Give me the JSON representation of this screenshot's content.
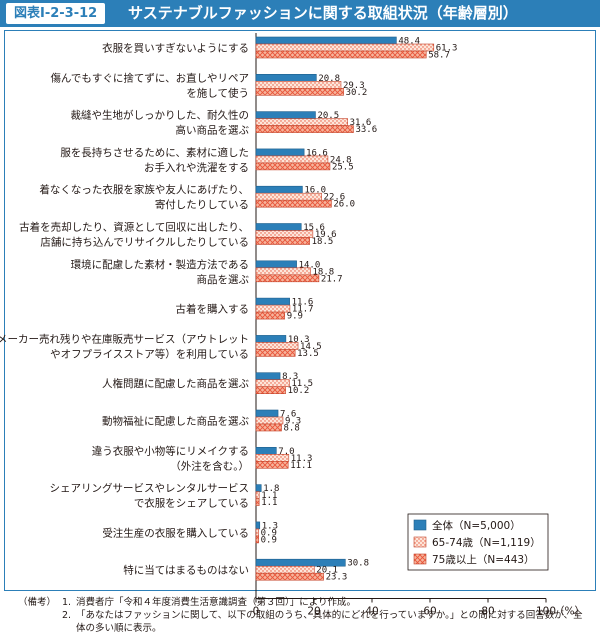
{
  "header": {
    "badge": "図表Ⅰ-2-3-12",
    "title": "サステナブルファッションに関する取組状況（年齢層別）"
  },
  "chart_data": {
    "type": "bar",
    "orientation": "horizontal",
    "categories": [
      [
        "衣服を買いすぎないようにする"
      ],
      [
        "傷んでもすぐに捨てずに、お直しやリペア",
        "を施して使う"
      ],
      [
        "裁縫や生地がしっかりした、耐久性の",
        "高い商品を選ぶ"
      ],
      [
        "服を長持ちさせるために、素材に適した",
        "お手入れや洗濯をする"
      ],
      [
        "着なくなった衣服を家族や友人にあげたり、",
        "寄付したりしている"
      ],
      [
        "古着を売却したり、資源として回収に出したり、",
        "店舗に持ち込んでリサイクルしたりしている"
      ],
      [
        "環境に配慮した素材・製造方法である",
        "商品を選ぶ"
      ],
      [
        "古着を購入する"
      ],
      [
        "メーカー売れ残りや在庫販売サービス（アウトレット",
        "やオフプライスストア等）を利用している"
      ],
      [
        "人権問題に配慮した商品を選ぶ"
      ],
      [
        "動物福祉に配慮した商品を選ぶ"
      ],
      [
        "違う衣服や小物等にリメイクする",
        "（外注を含む。）"
      ],
      [
        "シェアリングサービスやレンタルサービス",
        "で衣服をシェアしている"
      ],
      [
        "受注生産の衣服を購入している"
      ],
      [
        "特に当てはまるものはない"
      ]
    ],
    "series": [
      {
        "name": "全体（N=5,000）",
        "color": "#2c7fb8",
        "pattern": "solid",
        "values": [
          48.4,
          20.8,
          20.5,
          16.6,
          16.0,
          15.6,
          14.0,
          11.6,
          10.3,
          8.3,
          7.6,
          7.0,
          1.8,
          1.3,
          30.8
        ]
      },
      {
        "name": "65-74歳（N=1,119）",
        "color": "#e8553a",
        "pattern": "dots",
        "values": [
          61.3,
          29.3,
          31.6,
          24.8,
          22.6,
          19.6,
          18.8,
          11.7,
          14.5,
          11.5,
          9.3,
          11.3,
          1.1,
          0.9,
          20.1
        ]
      },
      {
        "name": "75歳以上（N=443）",
        "color": "#e8553a",
        "pattern": "crosshatch",
        "values": [
          58.7,
          30.2,
          33.6,
          25.5,
          26.0,
          18.5,
          21.7,
          9.9,
          13.5,
          10.2,
          8.8,
          11.1,
          1.1,
          0.9,
          23.3
        ]
      }
    ],
    "xlim": [
      0,
      100
    ],
    "xticks": [
      0,
      20,
      40,
      60,
      80,
      100
    ],
    "xunit": "（%）",
    "legend_position": "bottom-right"
  },
  "notes": {
    "label": "（備考）",
    "items": [
      {
        "num": "1.",
        "text": "消費者庁「令和４年度消費生活意識調査（第３回）」により作成。"
      },
      {
        "num": "2.",
        "text": "「あなたはファッションに関して、以下の取組のうち、具体的にどれを行っていますか。」との問に対する回答数が、全体の多い順に表示。"
      }
    ]
  }
}
